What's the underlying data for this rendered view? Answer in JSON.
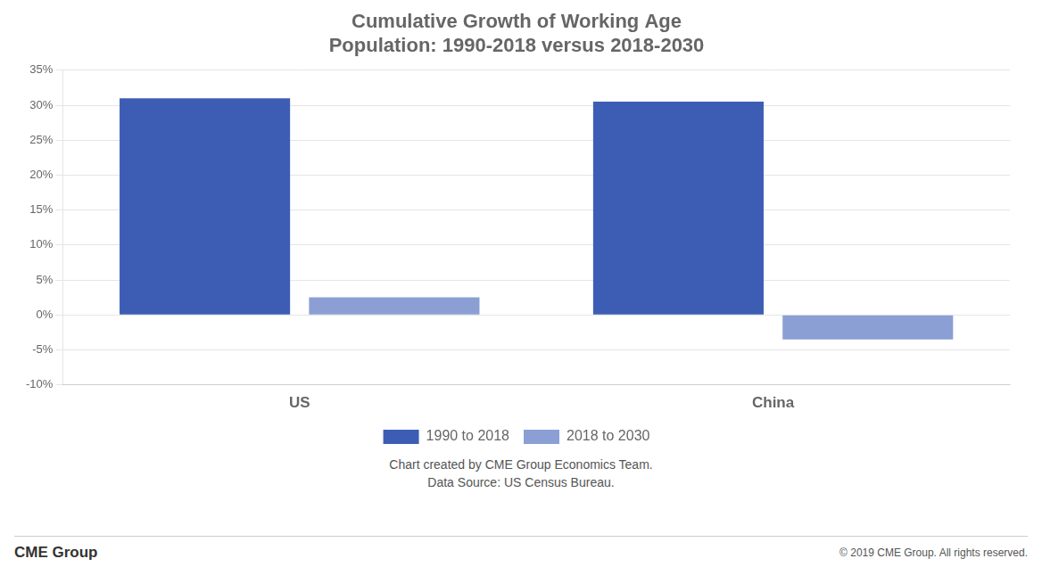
{
  "chart_data": {
    "type": "bar",
    "title": "Cumulative Growth of Working Age\nPopulation: 1990-2018 versus 2018-2030",
    "categories": [
      "US",
      "China"
    ],
    "series": [
      {
        "name": "1990 to 2018",
        "color": "#3d5db5",
        "values": [
          31.0,
          30.5
        ]
      },
      {
        "name": "2018 to 2030",
        "color": "#8b9fd4",
        "values": [
          2.5,
          -3.5
        ]
      }
    ],
    "ylim": [
      -10,
      35
    ],
    "yticks": [
      {
        "value": -10,
        "label": "-10%"
      },
      {
        "value": -5,
        "label": "-5%"
      },
      {
        "value": 0,
        "label": "0%"
      },
      {
        "value": 5,
        "label": "5%"
      },
      {
        "value": 10,
        "label": "10%"
      },
      {
        "value": 15,
        "label": "15%"
      },
      {
        "value": 20,
        "label": "20%"
      },
      {
        "value": 25,
        "label": "25%"
      },
      {
        "value": 30,
        "label": "30%"
      },
      {
        "value": 35,
        "label": "35%"
      }
    ],
    "grid": true,
    "legend": "bottom",
    "annotations": [
      "Chart created by CME Group Economics Team.\nData Source: US Census Bureau.",
      "CME Group",
      "© 2019 CME Group. All rights reserved."
    ]
  }
}
